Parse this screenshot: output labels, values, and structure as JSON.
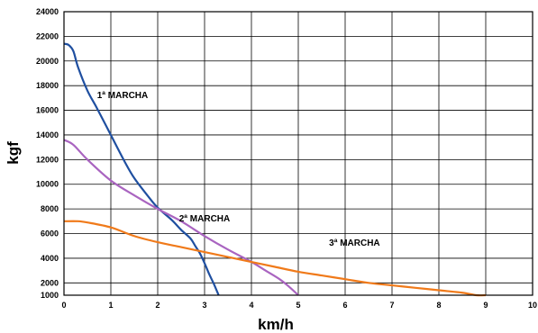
{
  "chart_data": {
    "type": "line",
    "title": "",
    "xlabel": "km/h",
    "ylabel": "kgf",
    "xlim": [
      0,
      10
    ],
    "ylim": [
      1000,
      24000
    ],
    "x_ticks": [
      "0",
      "1",
      "2",
      "3",
      "4",
      "5",
      "6",
      "7",
      "8",
      "9",
      "10"
    ],
    "y_ticks": [
      "1000",
      "2000",
      "4000",
      "6000",
      "8000",
      "10000",
      "12000",
      "14000",
      "16000",
      "18000",
      "20000",
      "22000",
      "24000"
    ],
    "grid": true,
    "legend": "none",
    "series": [
      {
        "color": "#1f4fa0",
        "points": [
          [
            0,
            21400
          ],
          [
            0.1,
            21300
          ],
          [
            0.2,
            20800
          ],
          [
            0.3,
            19500
          ],
          [
            0.5,
            17600
          ],
          [
            0.7,
            16200
          ],
          [
            1.0,
            14000
          ],
          [
            1.3,
            11800
          ],
          [
            1.5,
            10500
          ],
          [
            1.8,
            9000
          ],
          [
            2.0,
            8100
          ],
          [
            2.3,
            7100
          ],
          [
            2.5,
            6300
          ],
          [
            2.7,
            5600
          ],
          [
            2.8,
            5000
          ],
          [
            2.9,
            4400
          ],
          [
            3.0,
            3600
          ],
          [
            3.1,
            2700
          ],
          [
            3.2,
            1900
          ],
          [
            3.3,
            1000
          ]
        ]
      },
      {
        "color": "#a964c0",
        "points": [
          [
            0,
            13600
          ],
          [
            0.2,
            13200
          ],
          [
            0.5,
            12000
          ],
          [
            1.0,
            10300
          ],
          [
            1.5,
            9100
          ],
          [
            2.0,
            8000
          ],
          [
            2.5,
            7000
          ],
          [
            3.0,
            5800
          ],
          [
            3.5,
            4700
          ],
          [
            4.0,
            3700
          ],
          [
            4.3,
            3000
          ],
          [
            4.6,
            2300
          ],
          [
            4.8,
            1700
          ],
          [
            5.0,
            1000
          ]
        ]
      },
      {
        "color": "#f07a1a",
        "points": [
          [
            0,
            7000
          ],
          [
            0.3,
            7000
          ],
          [
            0.5,
            6900
          ],
          [
            1.0,
            6500
          ],
          [
            1.5,
            5800
          ],
          [
            2.0,
            5300
          ],
          [
            2.5,
            4900
          ],
          [
            3.0,
            4500
          ],
          [
            3.5,
            4100
          ],
          [
            4.0,
            3700
          ],
          [
            4.5,
            3300
          ],
          [
            5.0,
            2900
          ],
          [
            5.5,
            2600
          ],
          [
            6.0,
            2300
          ],
          [
            6.5,
            2000
          ],
          [
            7.0,
            1800
          ],
          [
            7.5,
            1600
          ],
          [
            8.0,
            1400
          ],
          [
            8.5,
            1200
          ],
          [
            8.8,
            1000
          ],
          [
            9.0,
            1000
          ]
        ]
      }
    ],
    "annotations": [
      {
        "text": "1ª MARCHA",
        "x": 1.25,
        "y": 17000
      },
      {
        "text": "2ª MARCHA",
        "x": 3.0,
        "y": 7000
      },
      {
        "text": "3ª MARCHA",
        "x": 6.2,
        "y": 5000
      }
    ]
  }
}
